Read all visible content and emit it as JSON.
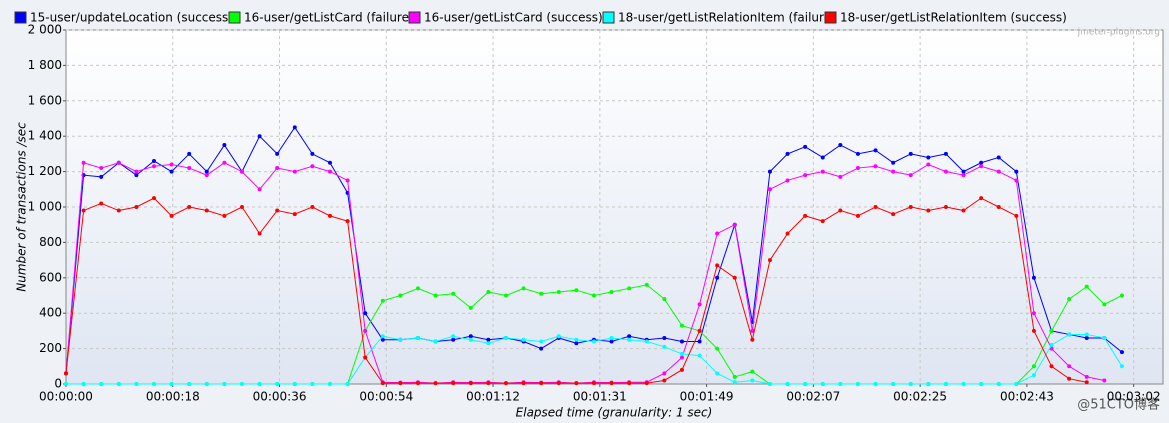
{
  "chart_data": {
    "type": "line",
    "watermark": "jmeter-plugins.org",
    "credit": "@51CTO博客",
    "xlabel": "Elapsed time (granularity: 1 sec)",
    "ylabel": "Number of transactions /sec",
    "grid": true,
    "legend": "top",
    "xlim": [
      0,
      187
    ],
    "ylim": [
      0,
      2000
    ],
    "xticks": [
      {
        "value": 0,
        "label": "00:00:00"
      },
      {
        "value": 18.2,
        "label": "00:00:18"
      },
      {
        "value": 36.4,
        "label": "00:00:36"
      },
      {
        "value": 54.6,
        "label": "00:00:54"
      },
      {
        "value": 72.8,
        "label": "00:01:12"
      },
      {
        "value": 91,
        "label": "00:01:31"
      },
      {
        "value": 109.2,
        "label": "00:01:49"
      },
      {
        "value": 127.4,
        "label": "00:02:07"
      },
      {
        "value": 145.6,
        "label": "00:02:25"
      },
      {
        "value": 163.8,
        "label": "00:02:43"
      },
      {
        "value": 182,
        "label": "00:03:02"
      }
    ],
    "yticks": [
      0,
      200,
      400,
      600,
      800,
      {
        "value": 1000,
        "label": "1 000"
      },
      {
        "value": 1200,
        "label": "1 200"
      },
      {
        "value": 1400,
        "label": "1 400"
      },
      {
        "value": 1600,
        "label": "1 600"
      },
      {
        "value": 1800,
        "label": "1 800"
      },
      {
        "value": 2000,
        "label": "2 000"
      }
    ],
    "x": [
      0,
      3,
      6,
      9,
      12,
      15,
      18,
      21,
      24,
      27,
      30,
      33,
      36,
      39,
      42,
      45,
      48,
      51,
      54,
      57,
      60,
      63,
      66,
      69,
      72,
      75,
      78,
      81,
      84,
      87,
      90,
      93,
      96,
      99,
      102,
      105,
      108,
      111,
      114,
      117,
      120,
      123,
      126,
      129,
      132,
      135,
      138,
      141,
      144,
      147,
      150,
      153,
      156,
      159,
      162,
      165,
      168,
      171,
      174,
      177,
      180
    ],
    "series": [
      {
        "name": "15-user/updateLocation (success)",
        "color": "#0000ff",
        "values": [
          60,
          1180,
          1170,
          1250,
          1180,
          1260,
          1200,
          1300,
          1200,
          1350,
          1200,
          1400,
          1300,
          1450,
          1300,
          1250,
          1080,
          400,
          250,
          250,
          260,
          240,
          250,
          270,
          250,
          260,
          240,
          200,
          260,
          230,
          250,
          240,
          270,
          250,
          260,
          240,
          240,
          600,
          900,
          350,
          1200,
          1300,
          1340,
          1280,
          1350,
          1300,
          1320,
          1250,
          1300,
          1280,
          1300,
          1200,
          1250,
          1280,
          1200,
          600,
          300,
          280,
          260,
          260,
          180
        ]
      },
      {
        "name": "16-user/getListCard (failure)",
        "color": "#00ff00",
        "values": [
          0,
          0,
          0,
          0,
          0,
          0,
          0,
          0,
          0,
          0,
          0,
          0,
          0,
          0,
          0,
          0,
          0,
          300,
          470,
          500,
          540,
          500,
          510,
          430,
          520,
          500,
          540,
          510,
          520,
          530,
          500,
          520,
          540,
          560,
          480,
          330,
          300,
          200,
          40,
          70,
          0,
          0,
          0,
          0,
          0,
          0,
          0,
          0,
          0,
          0,
          0,
          0,
          0,
          0,
          0,
          100,
          300,
          480,
          550,
          450,
          500
        ]
      },
      {
        "name": "16-user/getListCard (success)",
        "color": "#ff00ff",
        "values": [
          60,
          1250,
          1220,
          1250,
          1200,
          1230,
          1240,
          1220,
          1180,
          1250,
          1200,
          1100,
          1220,
          1200,
          1230,
          1200,
          1150,
          300,
          10,
          8,
          10,
          5,
          10,
          8,
          10,
          5,
          10,
          8,
          10,
          5,
          10,
          8,
          10,
          10,
          60,
          150,
          450,
          850,
          900,
          300,
          1100,
          1150,
          1180,
          1200,
          1170,
          1220,
          1230,
          1200,
          1180,
          1240,
          1200,
          1180,
          1230,
          1200,
          1150,
          400,
          200,
          100,
          40,
          20,
          null
        ]
      },
      {
        "name": "18-user/getListRelationItem (failure)",
        "color": "#00ffff",
        "values": [
          0,
          0,
          0,
          0,
          0,
          0,
          0,
          0,
          0,
          0,
          0,
          0,
          0,
          0,
          0,
          0,
          0,
          150,
          270,
          250,
          260,
          240,
          270,
          250,
          230,
          260,
          250,
          240,
          270,
          250,
          240,
          260,
          250,
          240,
          210,
          170,
          160,
          60,
          10,
          20,
          0,
          0,
          0,
          0,
          0,
          0,
          0,
          0,
          0,
          0,
          0,
          0,
          0,
          0,
          0,
          50,
          220,
          280,
          280,
          260,
          100
        ]
      },
      {
        "name": "18-user/getListRelationItem (success)",
        "color": "#ff0000",
        "values": [
          60,
          980,
          1020,
          980,
          1000,
          1050,
          950,
          1000,
          980,
          950,
          1000,
          850,
          980,
          960,
          1000,
          950,
          920,
          150,
          5,
          5,
          5,
          5,
          5,
          5,
          5,
          5,
          5,
          5,
          5,
          5,
          5,
          5,
          5,
          5,
          20,
          80,
          300,
          670,
          600,
          250,
          700,
          850,
          950,
          920,
          980,
          950,
          1000,
          960,
          1000,
          980,
          1000,
          980,
          1050,
          1000,
          950,
          300,
          100,
          30,
          10,
          null,
          null
        ]
      }
    ]
  }
}
